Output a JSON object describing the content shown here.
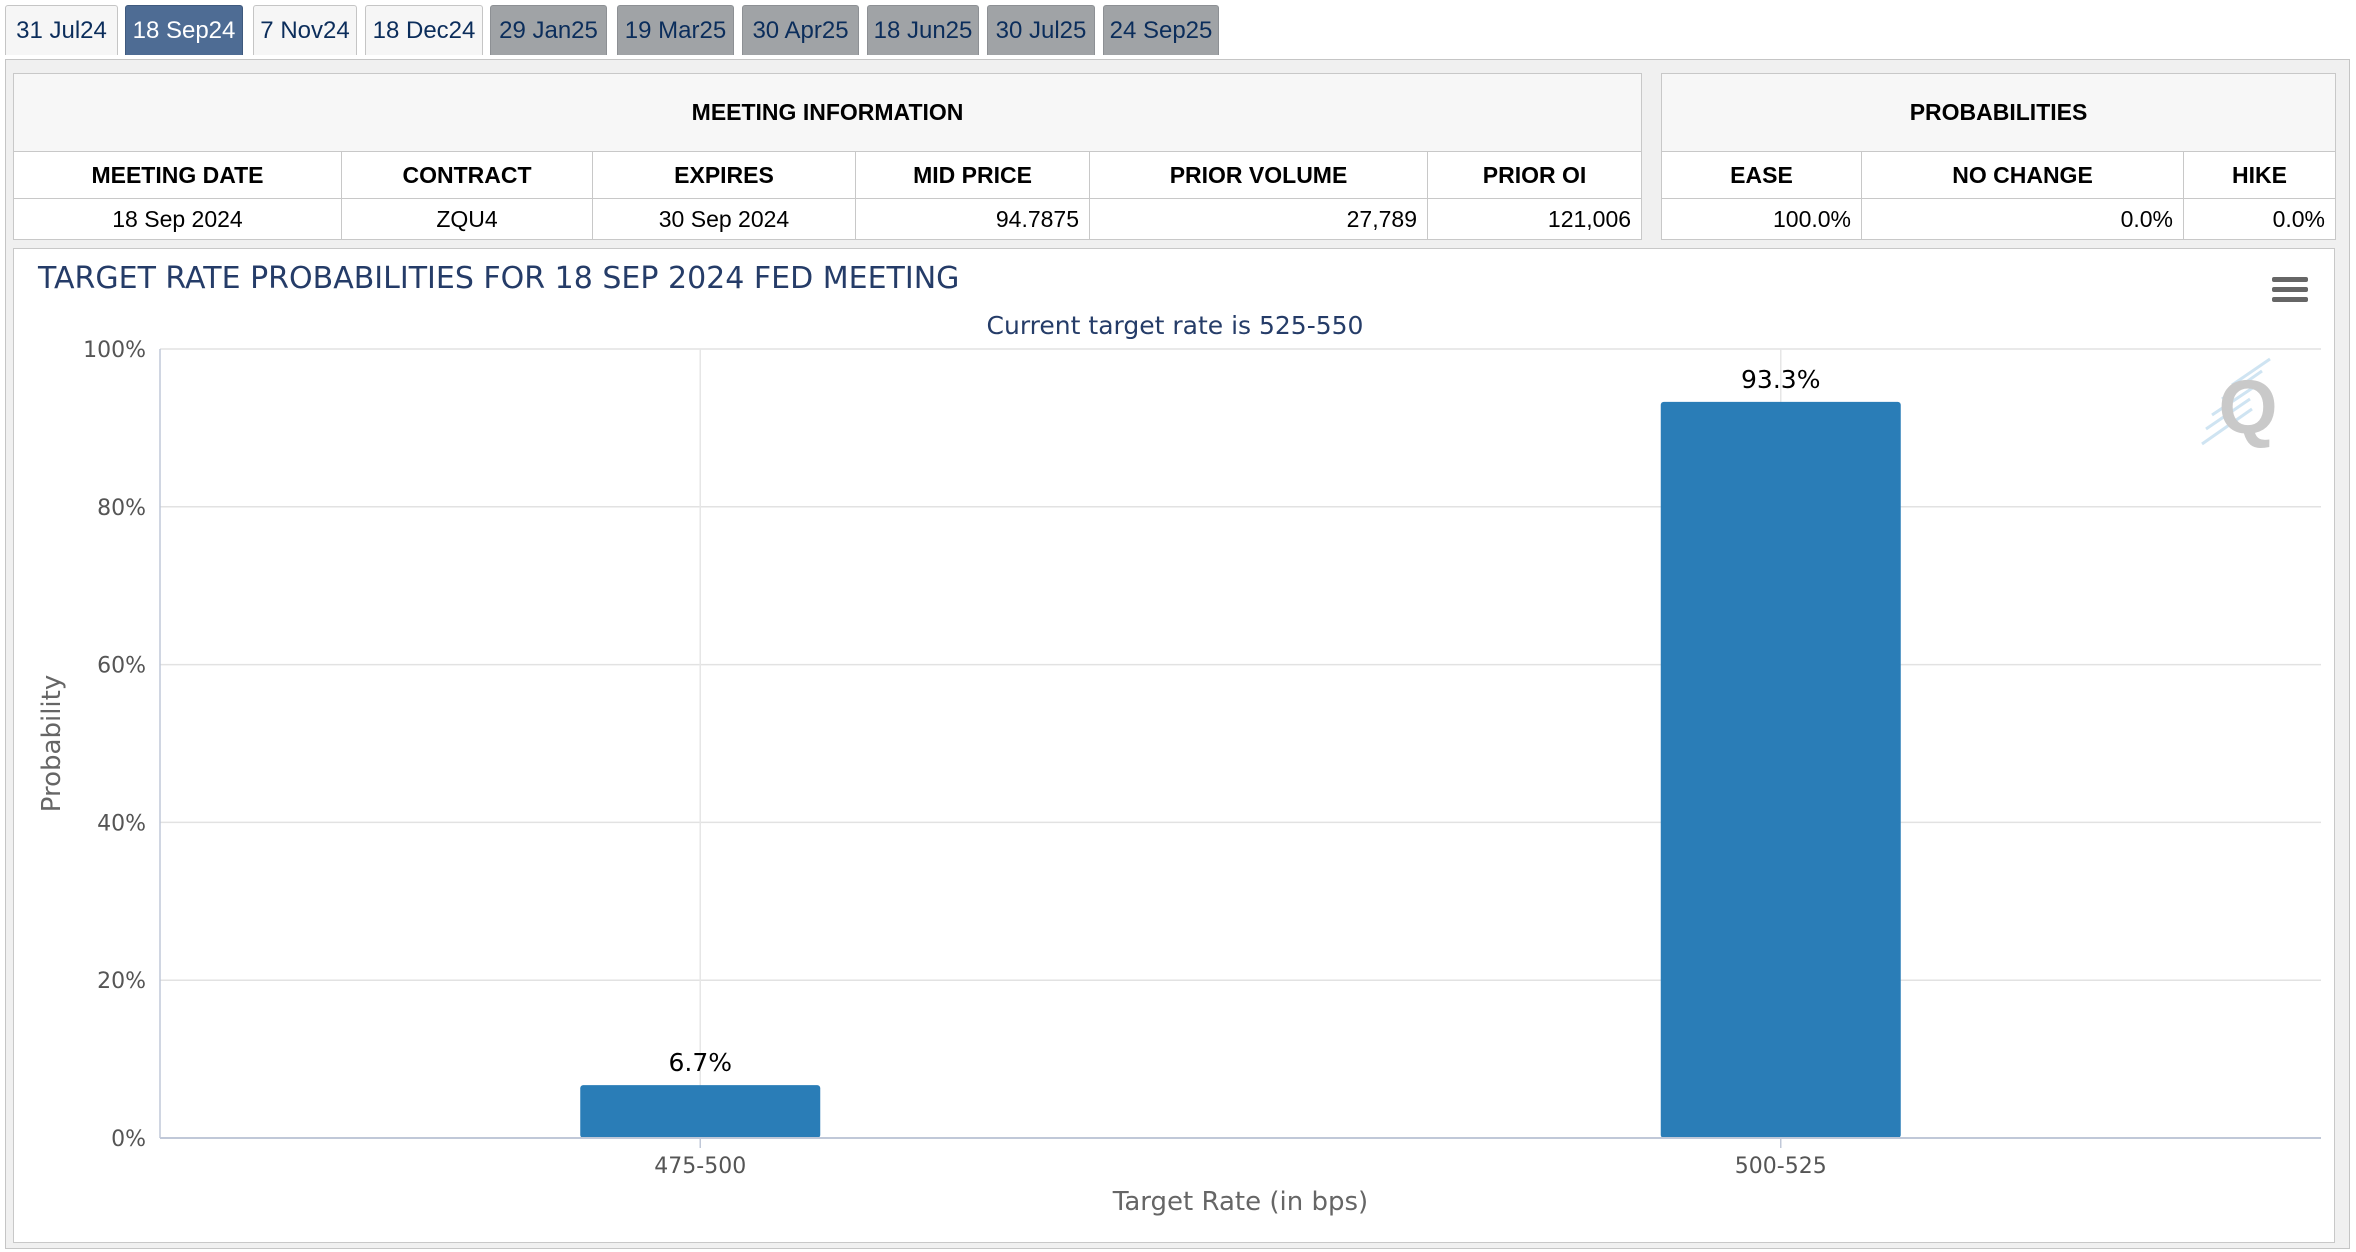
{
  "tabs": [
    {
      "label": "31 Jul24",
      "state": "light"
    },
    {
      "label": "18 Sep24",
      "state": "active"
    },
    {
      "label": "7 Nov24",
      "state": "light"
    },
    {
      "label": "18 Dec24",
      "state": "light"
    },
    {
      "label": "29 Jan25",
      "state": "gray"
    },
    {
      "label": "19 Mar25",
      "state": "gray"
    },
    {
      "label": "30 Apr25",
      "state": "gray"
    },
    {
      "label": "18 Jun25",
      "state": "gray"
    },
    {
      "label": "30 Jul25",
      "state": "gray"
    },
    {
      "label": "24 Sep25",
      "state": "gray"
    }
  ],
  "meeting_info": {
    "header": "MEETING INFORMATION",
    "columns": [
      "MEETING DATE",
      "CONTRACT",
      "EXPIRES",
      "MID PRICE",
      "PRIOR VOLUME",
      "PRIOR OI"
    ],
    "values": [
      "18 Sep 2024",
      "ZQU4",
      "30 Sep 2024",
      "94.7875",
      "27,789",
      "121,006"
    ]
  },
  "probabilities": {
    "header": "PROBABILITIES",
    "columns": [
      "EASE",
      "NO CHANGE",
      "HIKE"
    ],
    "values": [
      "100.0%",
      "0.0%",
      "0.0%"
    ]
  },
  "chart": {
    "menu_icon": "hamburger-menu-icon",
    "watermark": "Q"
  },
  "chart_data": {
    "type": "bar",
    "title": "TARGET RATE PROBABILITIES FOR 18 SEP 2024 FED MEETING",
    "subtitle": "Current target rate is 525-550",
    "xlabel": "Target Rate (in bps)",
    "ylabel": "Probability",
    "categories": [
      "475-500",
      "500-525"
    ],
    "values": [
      6.7,
      93.3
    ],
    "data_labels": [
      "6.7%",
      "93.3%"
    ],
    "ylim": [
      0,
      100
    ],
    "yticks": [
      "0%",
      "20%",
      "40%",
      "60%",
      "80%",
      "100%"
    ],
    "ytick_values": [
      0,
      20,
      40,
      60,
      80,
      100
    ],
    "bar_color": "#2a7db7",
    "grid": true
  }
}
